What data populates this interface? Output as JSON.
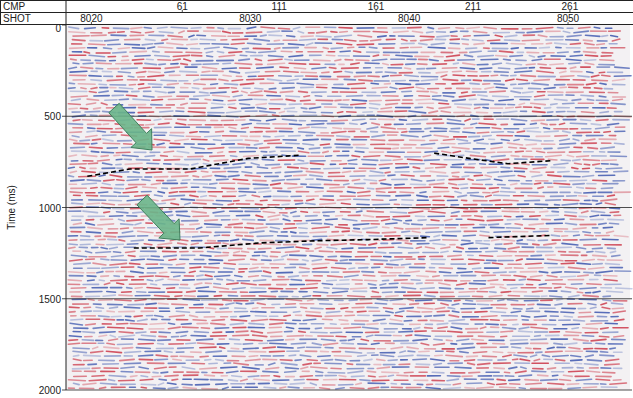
{
  "chart_data": {
    "type": "line",
    "x_label": "CMP",
    "x2_label": "SHOT",
    "y_label": "Time (ms)",
    "xlim": [
      1,
      292
    ],
    "xticks": [
      61,
      111,
      161,
      211,
      261
    ],
    "x2lim": [
      8018.4,
      8053.9
    ],
    "x2ticks": [
      8020,
      8030,
      8040,
      8050
    ],
    "ylim": [
      0,
      2000
    ],
    "yticks": [
      0,
      500,
      1000,
      1500,
      2000
    ],
    "grid": true,
    "series": [
      {
        "color": "#000000",
        "line_style": "dashed",
        "x": [
          12,
          34,
          65,
          95,
          121,
          160,
          191,
          209,
          229,
          252
        ],
        "values": [
          829,
          789,
          789,
          731,
          714,
          null,
          702,
          731,
          760,
          743
        ]
      },
      {
        "color": "#000000",
        "line_style": "dashed",
        "x": [
          36,
          70,
          101,
          131,
          157,
          188,
          204,
          219,
          252
        ],
        "values": [
          1222,
          1222,
          1194,
          1182,
          1176,
          1165,
          null,
          1165,
          1153
        ]
      }
    ]
  }
}
